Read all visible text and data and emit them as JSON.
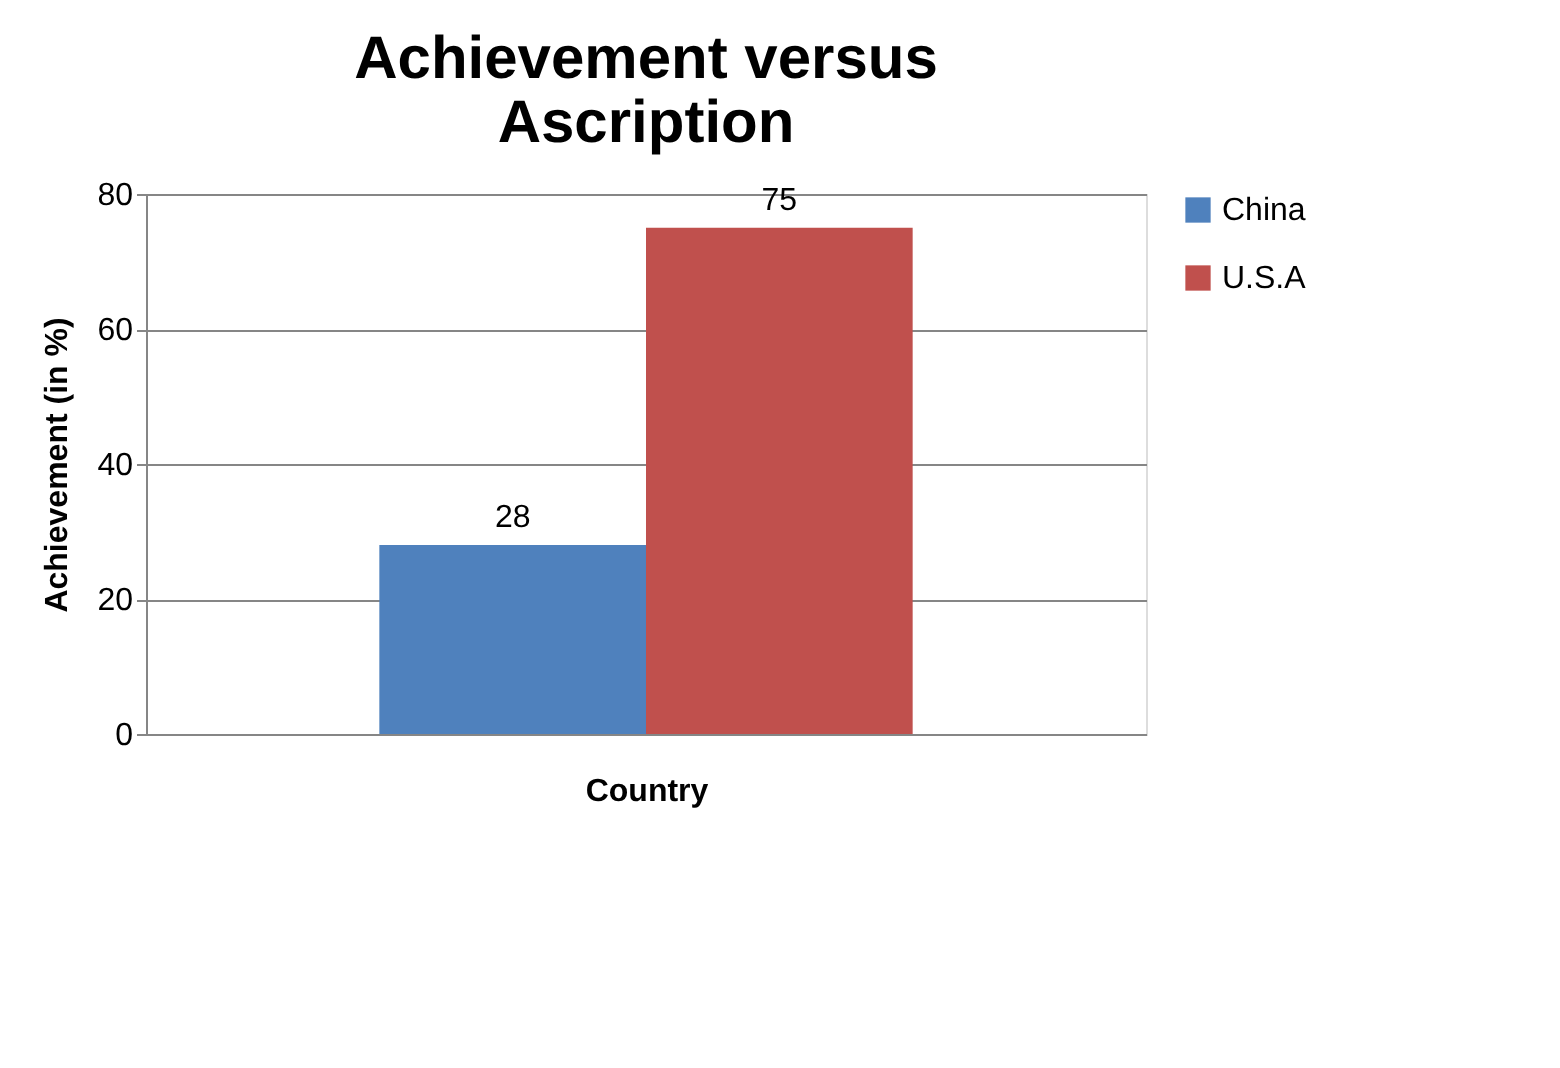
{
  "chart_data": {
    "type": "bar",
    "title": "Achievement versus Ascription",
    "xlabel": "Country",
    "ylabel": "Achievement (in %)",
    "categories": [
      null
    ],
    "series": [
      {
        "name": "China",
        "color": "#4f81bd",
        "values": [
          28
        ]
      },
      {
        "name": "U.S.A",
        "color": "#c0504d",
        "values": [
          75
        ]
      }
    ],
    "ylim": [
      0,
      80
    ],
    "yticks": [
      0,
      20,
      40,
      60,
      80
    ],
    "grid": "y",
    "legend": "right",
    "data_labels": true
  }
}
